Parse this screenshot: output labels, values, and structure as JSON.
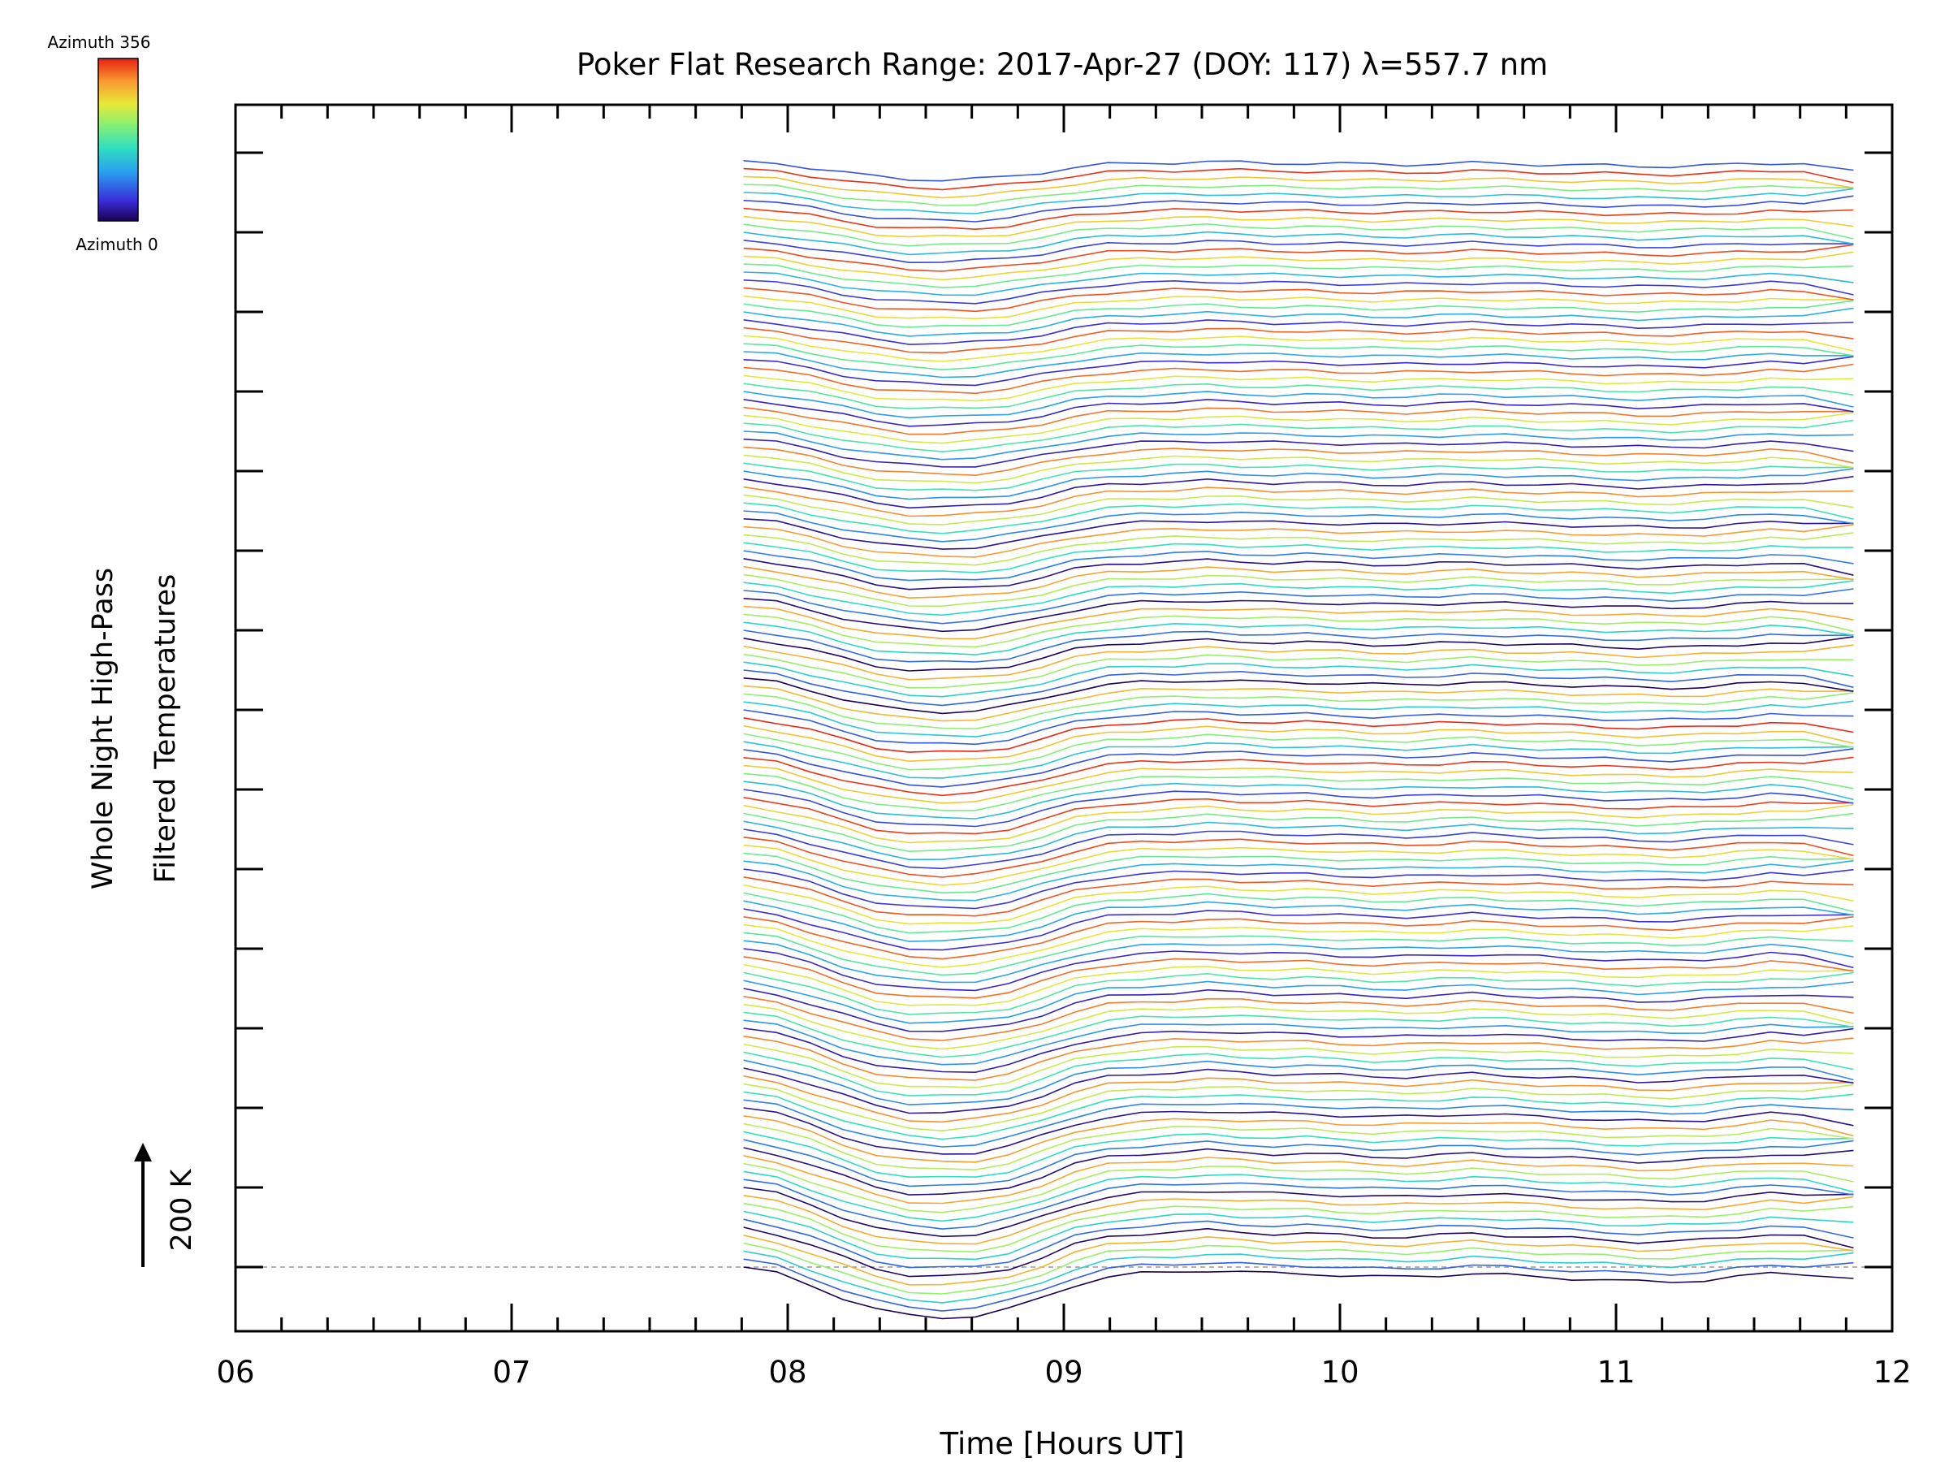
{
  "chart_data": {
    "type": "line",
    "title": "Poker Flat Research Range: 2017-Apr-27 (DOY: 117) λ=557.7 nm",
    "xlabel": "Time [Hours UT]",
    "ylabel_line1": "Whole Night High-Pass",
    "ylabel_line2": "Filtered Temperatures",
    "scale_bar_label": "200 K",
    "colorbar": {
      "top_label": "Azimuth 356",
      "bottom_label": "Azimuth 0"
    },
    "xlim": [
      6,
      12
    ],
    "x_tick_labels": [
      "06",
      "07",
      "08",
      "09",
      "10",
      "11",
      "12"
    ],
    "x_minor_step": 0.166667,
    "y_major_ticks": 15,
    "grid": false,
    "series_count": 140,
    "stacked_offset_K": 37,
    "time_start": 7.84,
    "time_end": 11.86,
    "profile": {
      "x": [
        7.84,
        7.96,
        8.08,
        8.2,
        8.32,
        8.44,
        8.56,
        8.68,
        8.8,
        8.92,
        9.04,
        9.16,
        9.28,
        9.4,
        9.52,
        9.64,
        9.76,
        9.88,
        10.0,
        10.12,
        10.24,
        10.36,
        10.48,
        10.6,
        10.72,
        10.84,
        10.96,
        11.08,
        11.2,
        11.32,
        11.44,
        11.56,
        11.68,
        11.86
      ],
      "y": [
        0,
        -8,
        -22,
        -38,
        -52,
        -60,
        -62,
        -60,
        -52,
        -38,
        -22,
        -12,
        -8,
        -6,
        -4,
        -6,
        -8,
        -8,
        -10,
        -12,
        -12,
        -10,
        -8,
        -10,
        -12,
        -14,
        -16,
        -18,
        -18,
        -16,
        -12,
        -8,
        -10,
        -14
      ]
    }
  }
}
